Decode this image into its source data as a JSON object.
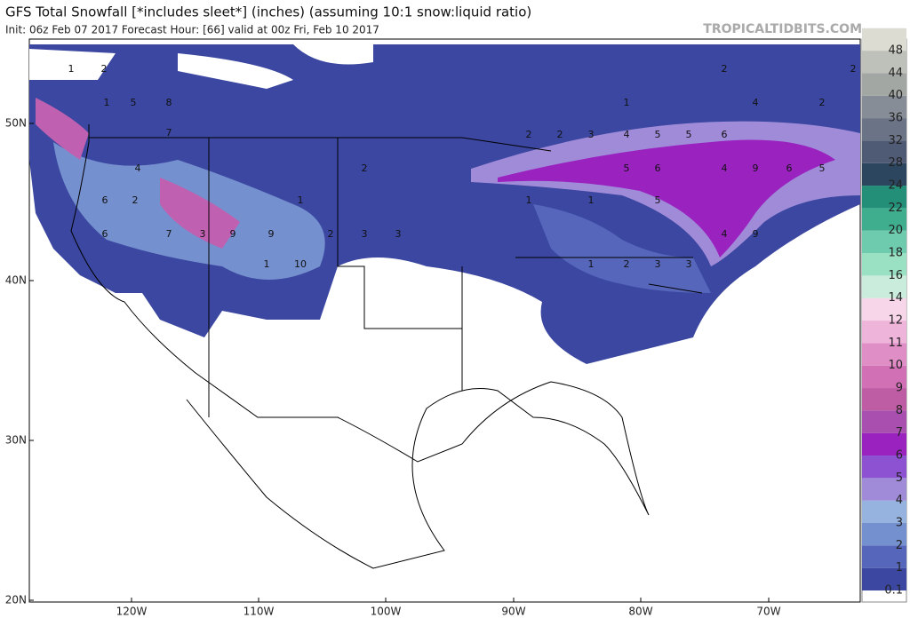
{
  "header": {
    "title": "GFS Total Snowfall [*includes sleet*] (inches) (assuming 10:1 snow:liquid ratio)",
    "subtitle": "Init: 06z Feb 07 2017   Forecast Hour: [66]   valid at 00z Fri, Feb 10 2017",
    "site": "TROPICALTIDBITS.COM"
  },
  "map": {
    "lat_labels": [
      "50N",
      "40N",
      "30N",
      "20N"
    ],
    "lon_labels": [
      "120W",
      "110W",
      "100W",
      "90W",
      "80W",
      "70W"
    ],
    "annotations": [
      "1",
      "2",
      "1",
      "5",
      "8",
      "7",
      "4",
      "6",
      "2",
      "7",
      "9",
      "3",
      "9",
      "6",
      "1",
      "10",
      "2",
      "3",
      "3",
      "2",
      "1",
      "2",
      "2",
      "3",
      "4",
      "5",
      "5",
      "6",
      "5",
      "6",
      "4",
      "9",
      "6",
      "5",
      "1",
      "1",
      "5",
      "9",
      "4",
      "1",
      "2",
      "3",
      "3",
      "4",
      "2",
      "2",
      "1",
      "2"
    ]
  },
  "colorbar": {
    "labels": [
      "0.1",
      "1",
      "2",
      "3",
      "4",
      "5",
      "6",
      "7",
      "8",
      "9",
      "10",
      "11",
      "12",
      "14",
      "16",
      "18",
      "20",
      "22",
      "24",
      "28",
      "32",
      "36",
      "40",
      "44",
      "48"
    ],
    "colors": [
      "#3b47a0",
      "#5566bb",
      "#7590cf",
      "#96b2de",
      "#a08bd9",
      "#8c52d1",
      "#9a22bf",
      "#a84fb0",
      "#bf5da4",
      "#d170b4",
      "#e08ec6",
      "#efb4da",
      "#f7d6ea",
      "#c9ecdc",
      "#9ae0c3",
      "#6ecbae",
      "#3fae8f",
      "#238f78",
      "#2c4660",
      "#4f5a74",
      "#6b7386",
      "#878d96",
      "#a3a7a4",
      "#bec1ba",
      "#dcdcd3"
    ]
  }
}
